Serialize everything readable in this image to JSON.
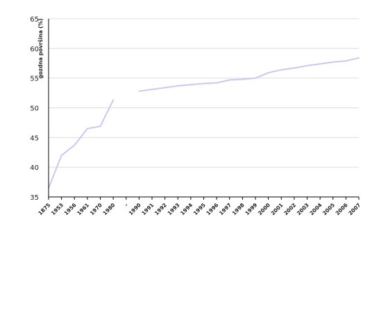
{
  "chart_data": {
    "type": "line",
    "title": "",
    "xlabel": "",
    "ylabel": "gozdna površina (%)",
    "ylim": [
      35,
      65
    ],
    "yticks": [
      35,
      40,
      45,
      50,
      55,
      60,
      65
    ],
    "grid": true,
    "x": [
      "1875",
      "1953",
      "1956",
      "1961",
      "1970",
      "1980",
      "-",
      "1990",
      "1991",
      "1992",
      "1993",
      "1994",
      "1995",
      "1996",
      "1997",
      "1998",
      "1999",
      "2000",
      "2001",
      "2002",
      "2003",
      "2004",
      "2005",
      "2006",
      "2007"
    ],
    "series": [
      {
        "color": "#c8c8f4",
        "values": [
          36.5,
          42.0,
          43.7,
          46.5,
          46.9,
          51.3,
          null,
          52.8,
          53.1,
          53.4,
          53.7,
          53.9,
          54.1,
          54.2,
          54.7,
          54.8,
          55.0,
          55.9,
          56.4,
          56.7,
          57.1,
          57.4,
          57.7,
          57.9,
          58.4
        ]
      }
    ],
    "axis_color": "#000000",
    "grid_color": "#dddddd"
  }
}
